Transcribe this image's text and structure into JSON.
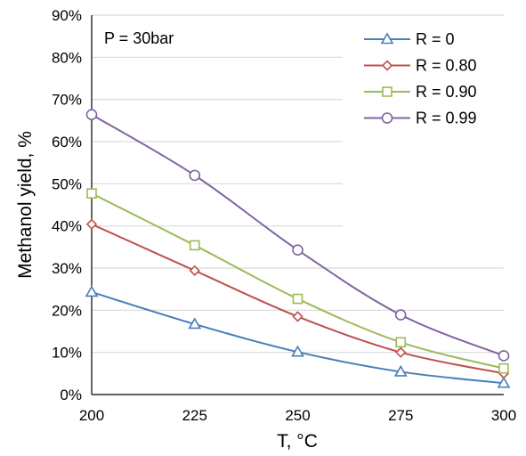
{
  "chart_data": {
    "type": "line",
    "xlabel": "T, °C",
    "ylabel": "Methanol yield, %",
    "annotation": "P = 30bar",
    "x": [
      200,
      225,
      250,
      275,
      300
    ],
    "xlim": [
      200,
      300
    ],
    "ylim": [
      0,
      90
    ],
    "yunit": "%",
    "xticks": [
      "200",
      "225",
      "250",
      "275",
      "300"
    ],
    "yticks": [
      "0%",
      "10%",
      "20%",
      "30%",
      "40%",
      "50%",
      "60%",
      "70%",
      "80%",
      "90%"
    ],
    "grid": "horizontal",
    "legend_position": "top-right",
    "series": [
      {
        "name": "R = 0",
        "color": "#4a7ebb",
        "marker": "triangle",
        "values": [
          24.3,
          16.7,
          10.1,
          5.4,
          2.7
        ]
      },
      {
        "name": "R = 0.80",
        "color": "#c0504d",
        "marker": "diamond",
        "values": [
          40.4,
          29.4,
          18.5,
          10.0,
          5.0
        ]
      },
      {
        "name": "R = 0.90",
        "color": "#9bbb59",
        "marker": "square",
        "values": [
          47.7,
          35.4,
          22.7,
          12.4,
          6.2
        ]
      },
      {
        "name": "R = 0.99",
        "color": "#8064a2",
        "marker": "circle",
        "values": [
          66.4,
          52.0,
          34.3,
          18.9,
          9.2
        ]
      }
    ]
  }
}
